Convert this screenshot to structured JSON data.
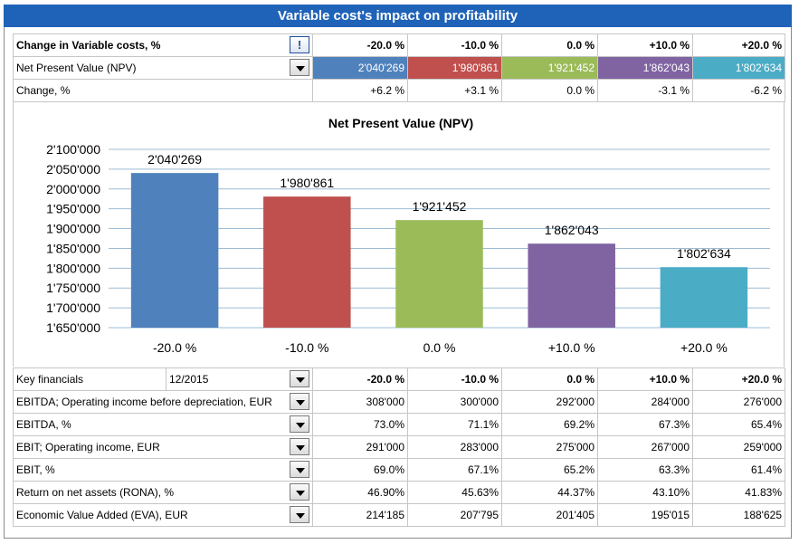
{
  "title": "Variable cost's impact on profitability",
  "top_table": {
    "header_label": "Change in Variable costs, %",
    "scenarios": [
      "-20.0 %",
      "-10.0 %",
      "0.0 %",
      "+10.0 %",
      "+20.0 %"
    ],
    "npv_label": "Net Present Value (NPV)",
    "npv_values": [
      "2'040'269",
      "1'980'861",
      "1'921'452",
      "1'862'043",
      "1'802'634"
    ],
    "change_label": "Change, %",
    "change_values": [
      "+6.2 %",
      "+3.1 %",
      "0.0 %",
      "-3.1 %",
      "-6.2 %"
    ]
  },
  "colors": {
    "title_bg": "#1f63b8",
    "series": [
      "#4f81bd",
      "#c0504d",
      "#9bbb59",
      "#8064a2",
      "#4bacc6"
    ],
    "grid": "#9dbcd4"
  },
  "chart_data": {
    "type": "bar",
    "title": "Net Present Value (NPV)",
    "categories": [
      "-20.0 %",
      "-10.0 %",
      "0.0 %",
      "+10.0 %",
      "+20.0 %"
    ],
    "values": [
      2040269,
      1980861,
      1921452,
      1862043,
      1802634
    ],
    "data_labels": [
      "2'040'269",
      "1'980'861",
      "1'921'452",
      "1'862'043",
      "1'802'634"
    ],
    "ylim": [
      1650000,
      2100000
    ],
    "yticks": [
      1650000,
      1700000,
      1750000,
      1800000,
      1850000,
      1900000,
      1950000,
      2000000,
      2050000,
      2100000
    ],
    "ytick_labels": [
      "1'650'000",
      "1'700'000",
      "1'750'000",
      "1'800'000",
      "1'850'000",
      "1'900'000",
      "1'950'000",
      "2'000'000",
      "2'050'000",
      "2'100'000"
    ],
    "grid": true,
    "xlabel": "",
    "ylabel": ""
  },
  "financials": {
    "header_label": "Key financials",
    "period": "12/2015",
    "scenarios": [
      "-20.0 %",
      "-10.0 %",
      "0.0 %",
      "+10.0 %",
      "+20.0 %"
    ],
    "rows": [
      {
        "label": "EBITDA; Operating income before depreciation, EUR",
        "values": [
          "308'000",
          "300'000",
          "292'000",
          "284'000",
          "276'000"
        ]
      },
      {
        "label": "EBITDA, %",
        "values": [
          "73.0%",
          "71.1%",
          "69.2%",
          "67.3%",
          "65.4%"
        ]
      },
      {
        "label": "EBIT; Operating income, EUR",
        "values": [
          "291'000",
          "283'000",
          "275'000",
          "267'000",
          "259'000"
        ]
      },
      {
        "label": "EBIT, %",
        "values": [
          "69.0%",
          "67.1%",
          "65.2%",
          "63.3%",
          "61.4%"
        ]
      },
      {
        "label": "Return on net assets (RONA), %",
        "values": [
          "46.90%",
          "45.63%",
          "44.37%",
          "43.10%",
          "41.83%"
        ]
      },
      {
        "label": "Economic Value Added (EVA), EUR",
        "values": [
          "214'185",
          "207'795",
          "201'405",
          "195'015",
          "188'625"
        ]
      }
    ]
  }
}
